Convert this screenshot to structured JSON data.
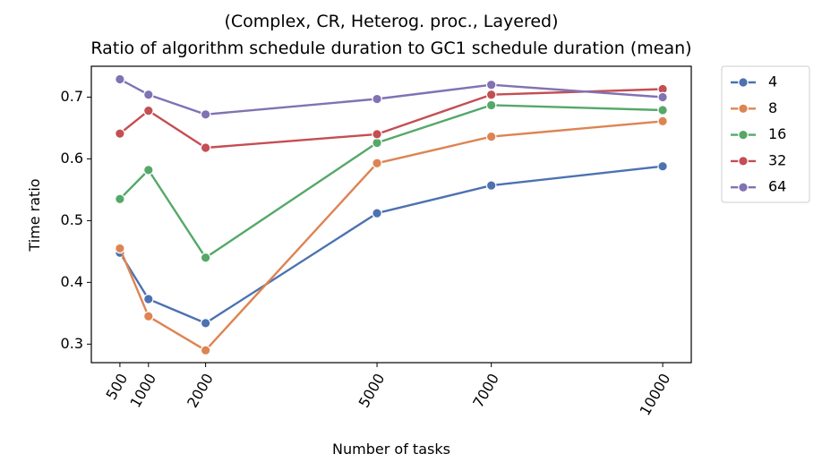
{
  "chart_data": {
    "type": "line",
    "title": "(Complex, CR, Heterog. proc., Layered)",
    "subtitle": "Ratio of algorithm schedule duration to GC1 schedule duration (mean)",
    "xlabel": "Number of tasks",
    "ylabel": "Time ratio",
    "x": [
      500,
      1000,
      2000,
      5000,
      7000,
      10000
    ],
    "x_ticks": [
      "500",
      "1000",
      "2000",
      "5000",
      "7000",
      "10000"
    ],
    "y_ticks": [
      "0.3",
      "0.4",
      "0.5",
      "0.6",
      "0.7"
    ],
    "xlim": [
      0,
      10500
    ],
    "ylim": [
      0.27,
      0.75
    ],
    "grid": false,
    "legend_position": "outside-right",
    "series": [
      {
        "name": "4",
        "color": "#4c72b0",
        "values": [
          0.448,
          0.373,
          0.334,
          0.512,
          0.557,
          0.588
        ]
      },
      {
        "name": "8",
        "color": "#dd8452",
        "values": [
          0.455,
          0.345,
          0.29,
          0.593,
          0.636,
          0.661
        ]
      },
      {
        "name": "16",
        "color": "#55a868",
        "values": [
          0.535,
          0.582,
          0.44,
          0.626,
          0.687,
          0.679
        ]
      },
      {
        "name": "32",
        "color": "#c44e52",
        "values": [
          0.641,
          0.678,
          0.618,
          0.64,
          0.704,
          0.713
        ]
      },
      {
        "name": "64",
        "color": "#8172b3",
        "values": [
          0.729,
          0.704,
          0.672,
          0.697,
          0.72,
          0.7
        ]
      }
    ]
  }
}
